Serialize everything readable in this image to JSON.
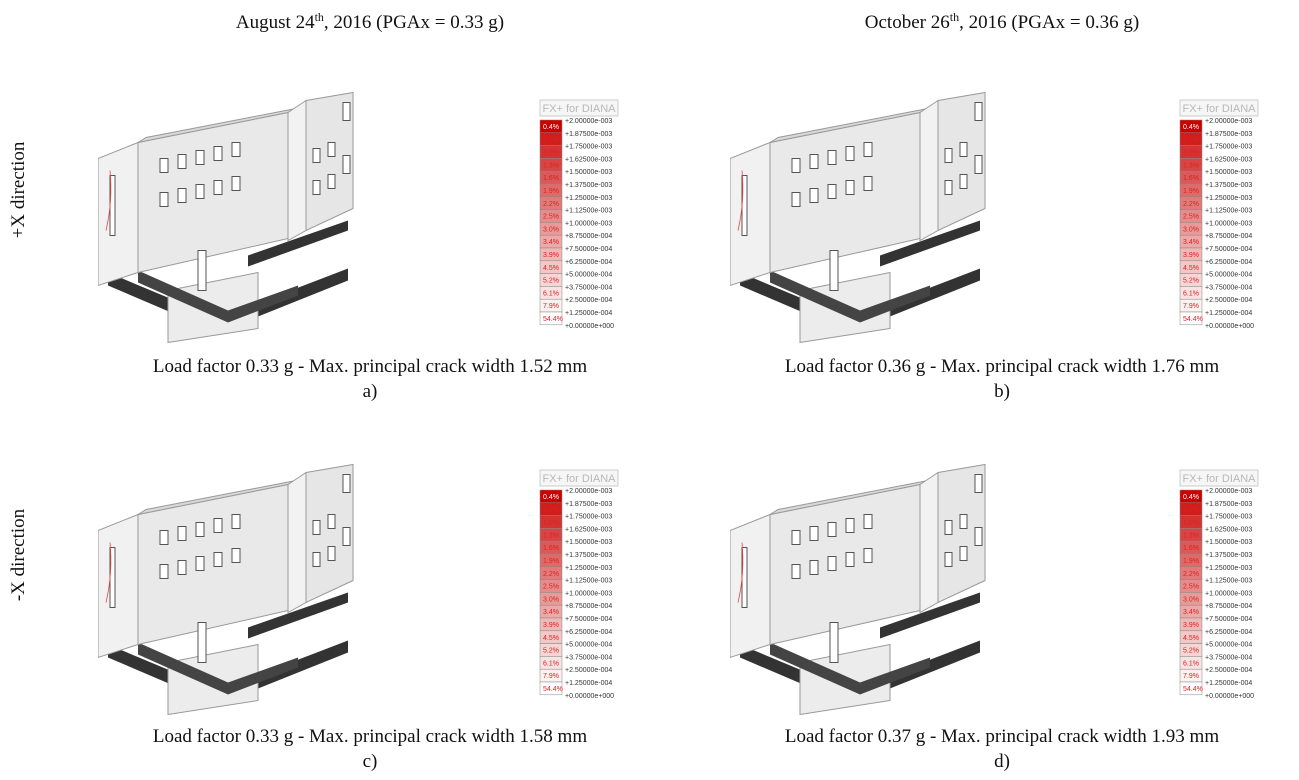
{
  "columns": [
    {
      "date": "August 24",
      "date_sup": "th",
      "rest": ", 2016 (PGAx = 0.33 g)"
    },
    {
      "date": "October 26",
      "date_sup": "th",
      "rest": ", 2016 (PGAx = 0.36 g)"
    }
  ],
  "rows": [
    {
      "label": "+X direction"
    },
    {
      "label": "-X direction"
    }
  ],
  "panels": [
    {
      "caption": "Load factor 0.33 g - Max. principal crack width 1.52 mm",
      "letter": "a)"
    },
    {
      "caption": "Load factor 0.36 g - Max. principal crack width 1.76 mm",
      "letter": "b)"
    },
    {
      "caption": "Load factor 0.33 g - Max. principal crack width 1.58 mm",
      "letter": "c)"
    },
    {
      "caption": "Load factor 0.37 g - Max. principal crack width 1.93 mm",
      "letter": "d)"
    }
  ],
  "legend": {
    "title": "FX+ for DIANA",
    "percentages": [
      "0.4%",
      "0.7%",
      "1.0%",
      "1.3%",
      "1.6%",
      "1.9%",
      "2.2%",
      "2.5%",
      "3.0%",
      "3.4%",
      "3.9%",
      "4.5%",
      "5.2%",
      "6.1%",
      "7.9%",
      "54.4%"
    ],
    "values": [
      "+2.00000e-003",
      "+1.87500e-003",
      "+1.75000e-003",
      "+1.62500e-003",
      "+1.50000e-003",
      "+1.37500e-003",
      "+1.25000e-003",
      "+1.12500e-003",
      "+1.00000e-003",
      "+8.75000e-004",
      "+7.50000e-004",
      "+6.25000e-004",
      "+5.00000e-004",
      "+3.75000e-004",
      "+2.50000e-004",
      "+1.25000e-004",
      "+0.00000e+000"
    ]
  }
}
